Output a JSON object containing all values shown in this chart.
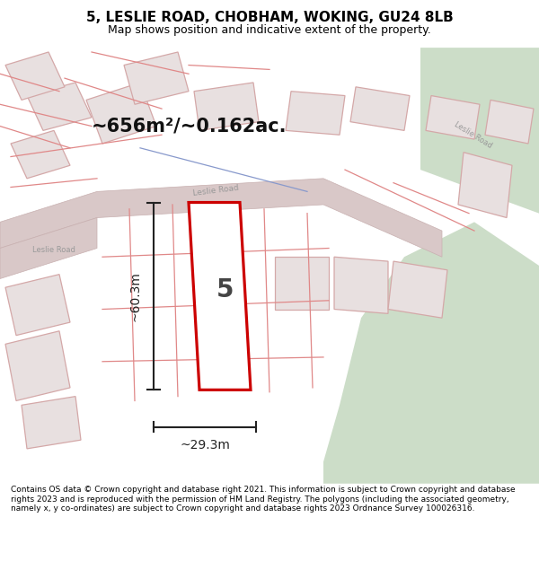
{
  "title": "5, LESLIE ROAD, CHOBHAM, WOKING, GU24 8LB",
  "subtitle": "Map shows position and indicative extent of the property.",
  "footer": "Contains OS data © Crown copyright and database right 2021. This information is subject to Crown copyright and database rights 2023 and is reproduced with the permission of HM Land Registry. The polygons (including the associated geometry, namely x, y co-ordinates) are subject to Crown copyright and database rights 2023 Ordnance Survey 100026316.",
  "area_text": "~656m²/~0.162ac.",
  "dim1_text": "~60.3m",
  "dim2_text": "~29.3m",
  "property_number": "5",
  "bg_map_color": "#f2ecec",
  "road_color": "#d9c8c8",
  "building_fill": "#e8e0e0",
  "building_stroke": "#d4a8a8",
  "highlight_fill": "#ffffff",
  "highlight_stroke": "#cc0000",
  "green_area": "#ccddc8",
  "road_label_color": "#999999",
  "dim_color": "#222222",
  "title_color": "#000000",
  "footer_color": "#000000"
}
